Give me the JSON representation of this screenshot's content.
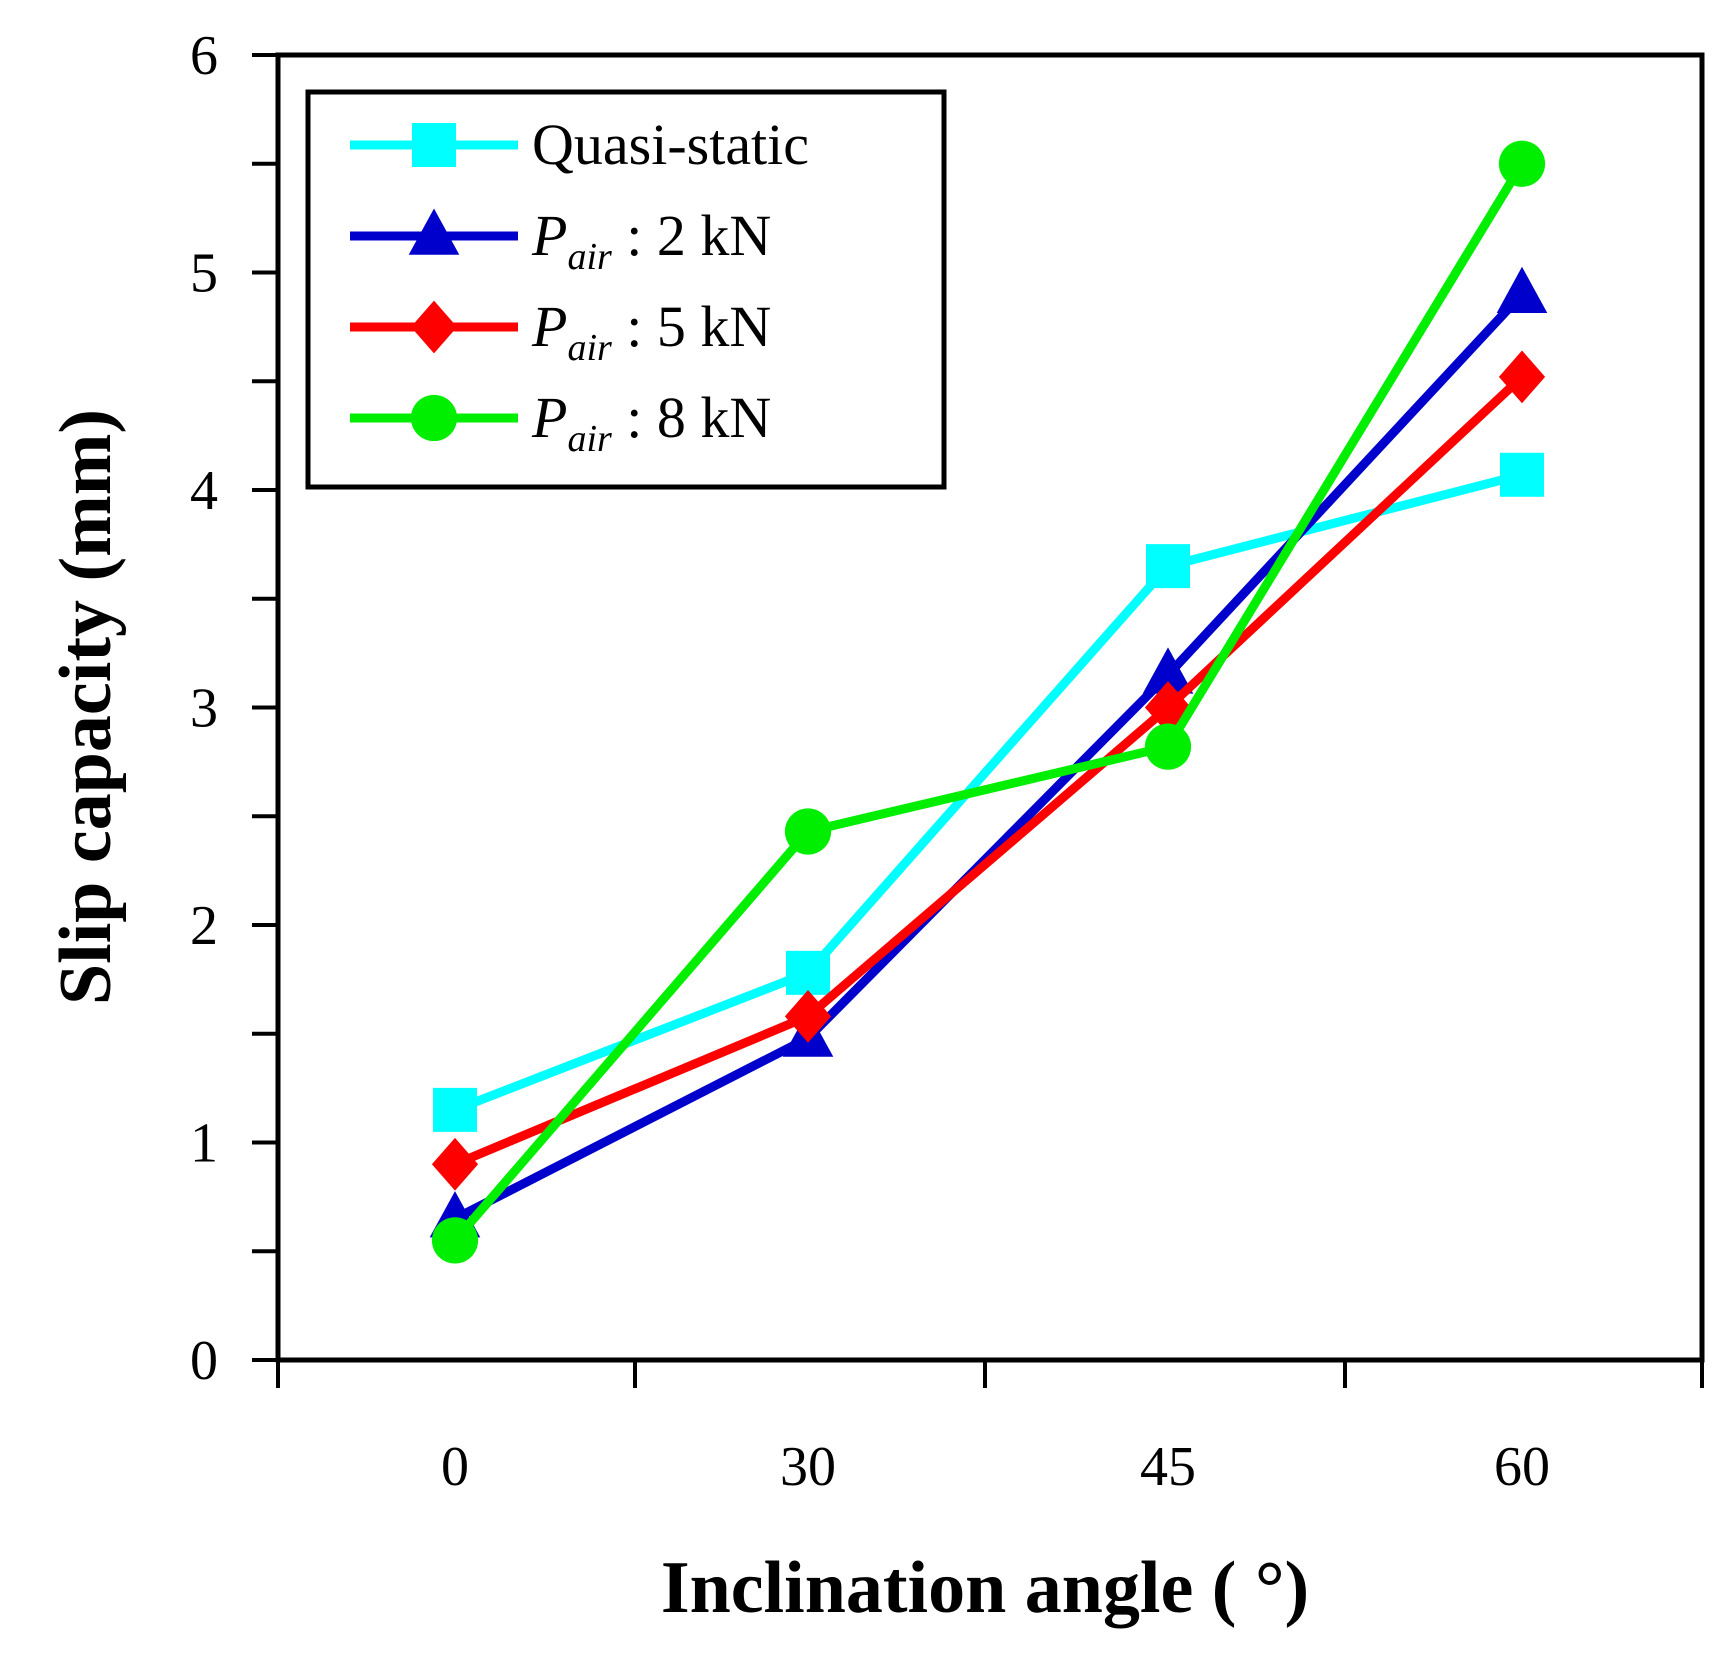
{
  "chart_data": {
    "type": "line",
    "title": "",
    "xlabel": "Inclination angle ( °)",
    "ylabel": "Slip capacity (mm)",
    "categories": [
      "0",
      "30",
      "45",
      "60"
    ],
    "ylim": [
      0,
      6
    ],
    "yticks": [
      "0",
      "1",
      "2",
      "3",
      "4",
      "5",
      "6"
    ],
    "grid": false,
    "legend_position": "top-left",
    "series": [
      {
        "name": "Quasi-static",
        "legend_main": "Quasi-static",
        "legend_sub": "",
        "legend_value": "",
        "color": "#00FFFF",
        "marker": "square",
        "values": [
          1.15,
          1.78,
          3.65,
          4.07
        ]
      },
      {
        "name": "Pair : 2 kN",
        "legend_main": "P",
        "legend_sub": "air",
        "legend_value": " : 2 kN",
        "color": "#0000CC",
        "marker": "triangle",
        "values": [
          0.65,
          1.48,
          3.15,
          4.9
        ]
      },
      {
        "name": "Pair : 5 kN",
        "legend_main": "P",
        "legend_sub": "air",
        "legend_value": " : 5 kN",
        "color": "#FF0000",
        "marker": "diamond",
        "values": [
          0.9,
          1.58,
          3.0,
          4.52
        ]
      },
      {
        "name": "Pair : 8 kN",
        "legend_main": "P",
        "legend_sub": "air",
        "legend_value": " : 8 kN",
        "color": "#00EE00",
        "marker": "circle",
        "values": [
          0.55,
          2.43,
          2.82,
          5.5
        ]
      }
    ]
  }
}
